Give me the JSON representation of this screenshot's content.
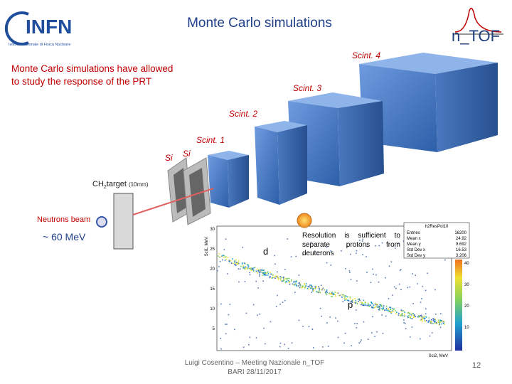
{
  "header": {
    "title": "Monte Carlo simulations",
    "logo_left": {
      "name": "INFN",
      "subtitle": "Istituto Nazionale di Fisica Nucleare"
    },
    "logo_right": {
      "name": "n_TOF"
    }
  },
  "intro": [
    "Monte Carlo simulations have allowed",
    "to study the response of the PRT"
  ],
  "setup": {
    "scintillators": [
      "Scint. 4",
      "Scint. 3",
      "Scint. 2",
      "Scint. 1"
    ],
    "silicon": [
      "Si",
      "Si"
    ],
    "target": {
      "formula": "CH",
      "subscript": "2",
      "label": "target",
      "size": "(10mm)"
    },
    "beam": "Neutrons beam",
    "energy": "~ 60 MeV"
  },
  "plot": {
    "title": "h2ResPol10",
    "stats": [
      [
        "Entries",
        "16200"
      ],
      [
        "Mean x",
        "24.92"
      ],
      [
        "Mean y",
        "9.692"
      ],
      [
        "Std Dev x",
        "16.53"
      ],
      [
        "Std Dev y",
        "3.206"
      ]
    ],
    "ylabel": "Sci1, MeV",
    "xlabel": "Sci2, MeV",
    "yticks": [
      "30",
      "25",
      "20",
      "15",
      "10",
      "5"
    ],
    "colorbar": [
      "40",
      "30",
      "20",
      "10"
    ],
    "labels": {
      "d": "d",
      "p": "p"
    },
    "note": "Resolution is sufficient to separate protons from deuterons"
  },
  "footer": {
    "author": "Luigi Cosentino – Meeting Nazionale n_TOF",
    "place_date": "BARI 28/11/2017",
    "page": "12"
  }
}
